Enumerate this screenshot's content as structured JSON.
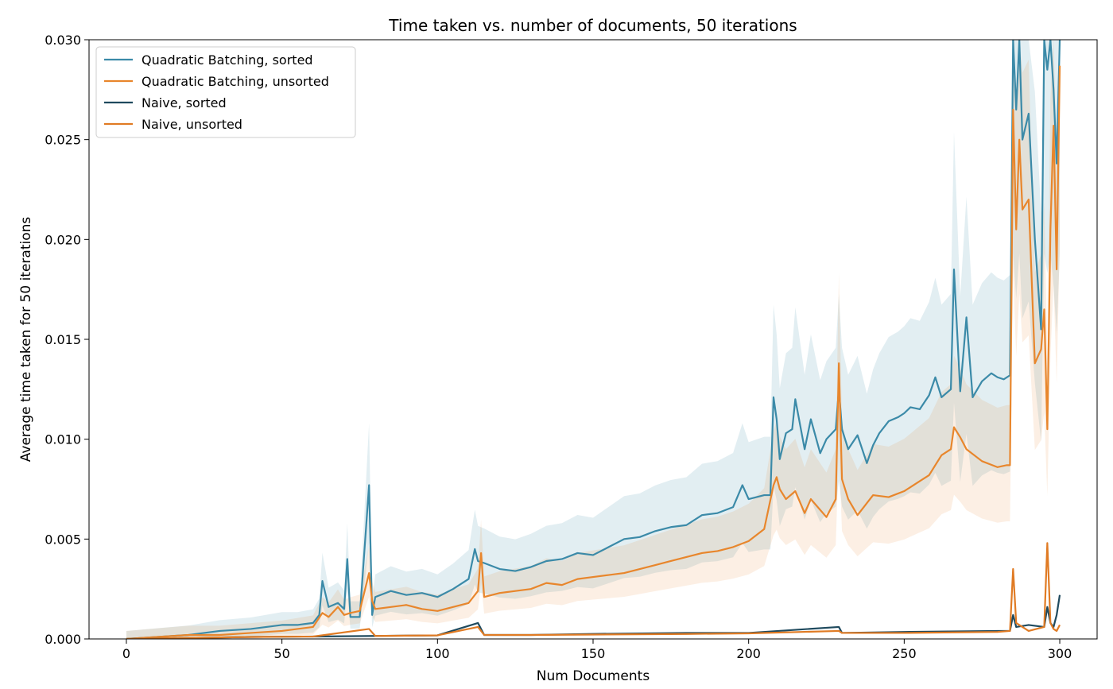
{
  "chart_data": {
    "type": "line",
    "title": "Time taken vs. number of documents, 50 iterations",
    "xlabel": "Num Documents",
    "ylabel": "Average time taken for 50 iterations",
    "xlim": [
      -12,
      312
    ],
    "ylim": [
      0,
      0.03
    ],
    "xticks": [
      "0",
      "50",
      "100",
      "150",
      "200",
      "250",
      "300"
    ],
    "yticks": [
      "0.000",
      "0.005",
      "0.010",
      "0.015",
      "0.020",
      "0.025",
      "0.030"
    ],
    "grid": false,
    "legend_position": "top-left",
    "series": [
      {
        "name": "Quadratic Batching, sorted",
        "color": "#3b8aa8",
        "x": [
          0,
          10,
          20,
          25,
          30,
          40,
          50,
          55,
          60,
          62,
          63,
          65,
          68,
          70,
          71,
          72,
          75,
          78,
          79,
          80,
          85,
          90,
          95,
          100,
          105,
          110,
          112,
          113,
          115,
          120,
          125,
          130,
          135,
          140,
          145,
          150,
          155,
          160,
          165,
          170,
          175,
          180,
          185,
          190,
          195,
          198,
          200,
          205,
          207,
          208,
          209,
          210,
          212,
          214,
          215,
          218,
          220,
          223,
          225,
          228,
          229,
          230,
          232,
          235,
          238,
          240,
          242,
          245,
          248,
          250,
          252,
          255,
          258,
          260,
          262,
          265,
          266,
          268,
          270,
          272,
          275,
          278,
          280,
          282,
          284,
          285,
          286,
          287,
          288,
          290,
          292,
          294,
          295,
          296,
          297,
          298,
          299,
          300
        ],
        "y": [
          0.0,
          0.0001,
          0.0002,
          0.0003,
          0.0004,
          0.0005,
          0.0007,
          0.0007,
          0.0008,
          0.0012,
          0.0029,
          0.0016,
          0.0018,
          0.0015,
          0.004,
          0.0011,
          0.0011,
          0.0077,
          0.0012,
          0.0021,
          0.0024,
          0.0022,
          0.0023,
          0.0021,
          0.0025,
          0.003,
          0.0045,
          0.0039,
          0.0038,
          0.0035,
          0.0034,
          0.0036,
          0.0039,
          0.004,
          0.0043,
          0.0042,
          0.0046,
          0.005,
          0.0051,
          0.0054,
          0.0056,
          0.0057,
          0.0062,
          0.0063,
          0.0066,
          0.0077,
          0.007,
          0.0072,
          0.0072,
          0.0121,
          0.011,
          0.009,
          0.0103,
          0.0105,
          0.012,
          0.0095,
          0.011,
          0.0093,
          0.01,
          0.0105,
          0.0125,
          0.0105,
          0.0095,
          0.0102,
          0.0088,
          0.0097,
          0.0103,
          0.0109,
          0.0111,
          0.0113,
          0.0116,
          0.0115,
          0.0122,
          0.0131,
          0.0121,
          0.0125,
          0.0185,
          0.0124,
          0.0161,
          0.0121,
          0.0129,
          0.0133,
          0.0131,
          0.013,
          0.0132,
          0.03,
          0.0265,
          0.03,
          0.025,
          0.0263,
          0.02,
          0.0155,
          0.03,
          0.0285,
          0.03,
          0.0275,
          0.0238,
          0.03
        ]
      },
      {
        "name": "Quadratic Batching, unsorted",
        "color": "#e8862c",
        "x": [
          0,
          10,
          20,
          30,
          40,
          50,
          55,
          60,
          63,
          65,
          68,
          70,
          72,
          75,
          78,
          79,
          80,
          85,
          90,
          95,
          100,
          105,
          110,
          113,
          114,
          115,
          120,
          125,
          130,
          135,
          140,
          145,
          150,
          155,
          160,
          165,
          170,
          175,
          180,
          185,
          190,
          195,
          200,
          205,
          208,
          209,
          210,
          212,
          215,
          218,
          220,
          225,
          228,
          229,
          230,
          232,
          235,
          238,
          240,
          245,
          250,
          255,
          258,
          260,
          262,
          265,
          266,
          268,
          270,
          275,
          280,
          283,
          284,
          285,
          286,
          287,
          288,
          290,
          292,
          294,
          295,
          296,
          297,
          298,
          299,
          300
        ],
        "y": [
          0.0,
          0.0001,
          0.0002,
          0.0002,
          0.0003,
          0.0004,
          0.0005,
          0.0006,
          0.0013,
          0.0011,
          0.0016,
          0.0012,
          0.0013,
          0.0014,
          0.0033,
          0.0019,
          0.0015,
          0.0016,
          0.0017,
          0.0015,
          0.0014,
          0.0016,
          0.0018,
          0.0024,
          0.0043,
          0.0021,
          0.0023,
          0.0024,
          0.0025,
          0.0028,
          0.0027,
          0.003,
          0.0031,
          0.0032,
          0.0033,
          0.0035,
          0.0037,
          0.0039,
          0.0041,
          0.0043,
          0.0044,
          0.0046,
          0.0049,
          0.0055,
          0.0077,
          0.0081,
          0.0075,
          0.007,
          0.0074,
          0.0063,
          0.007,
          0.0061,
          0.007,
          0.0138,
          0.008,
          0.007,
          0.0062,
          0.0068,
          0.0072,
          0.0071,
          0.0074,
          0.0079,
          0.0082,
          0.0087,
          0.0092,
          0.0095,
          0.0106,
          0.0101,
          0.0095,
          0.0089,
          0.0086,
          0.0087,
          0.0087,
          0.0265,
          0.0205,
          0.025,
          0.0215,
          0.022,
          0.0138,
          0.0145,
          0.0165,
          0.0105,
          0.0205,
          0.0257,
          0.0185,
          0.0287
        ]
      },
      {
        "name": "Naive, sorted",
        "color": "#1f4a5e",
        "x": [
          0,
          20,
          40,
          60,
          80,
          100,
          113,
          115,
          130,
          150,
          180,
          200,
          229,
          230,
          250,
          280,
          284,
          285,
          286,
          290,
          295,
          296,
          297,
          298,
          299,
          300
        ],
        "y": [
          0.0,
          5e-05,
          0.0001,
          0.00012,
          0.00015,
          0.00018,
          0.0008,
          0.0002,
          0.0002,
          0.00025,
          0.0003,
          0.0003,
          0.0006,
          0.0003,
          0.00035,
          0.0004,
          0.0004,
          0.0012,
          0.0006,
          0.0007,
          0.0006,
          0.0016,
          0.0008,
          0.0006,
          0.0012,
          0.0022
        ]
      },
      {
        "name": "Naive, unsorted",
        "color": "#e07b24",
        "x": [
          0,
          20,
          40,
          60,
          78,
          80,
          100,
          113,
          115,
          130,
          150,
          180,
          200,
          229,
          230,
          250,
          280,
          284,
          285,
          286,
          290,
          295,
          296,
          297,
          298,
          299,
          300
        ],
        "y": [
          0.0,
          5e-05,
          0.0001,
          0.00012,
          0.0005,
          0.00015,
          0.00018,
          0.0006,
          0.0002,
          0.0002,
          0.00022,
          0.00025,
          0.00028,
          0.0004,
          0.0003,
          0.0003,
          0.00035,
          0.0004,
          0.0035,
          0.0008,
          0.0004,
          0.0006,
          0.0048,
          0.0008,
          0.0005,
          0.0004,
          0.0007
        ]
      }
    ]
  }
}
